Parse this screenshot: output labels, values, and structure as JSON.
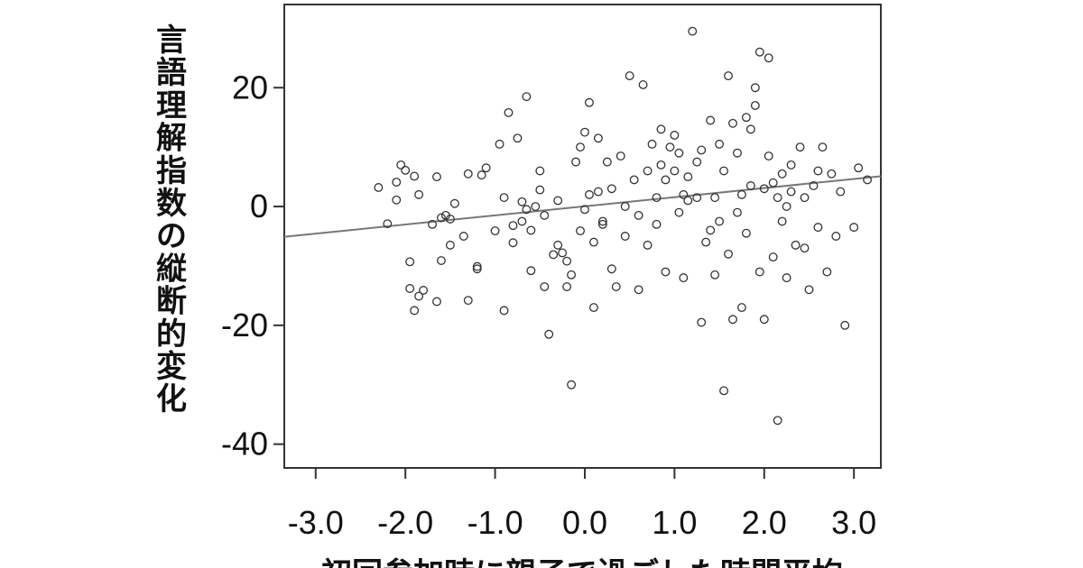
{
  "chart_data": {
    "type": "scatter",
    "title": "",
    "xlabel": "初回参加時に親子で過ごした時間平均",
    "ylabel": "言語理解指数の縦断的変化",
    "xlim": [
      -3.35,
      3.3
    ],
    "ylim": [
      -44,
      34
    ],
    "xticks": [
      -3.0,
      -2.0,
      -1.0,
      0.0,
      1.0,
      2.0,
      3.0
    ],
    "xtick_labels": [
      "-3.0",
      "-2.0",
      "-1.0",
      "0.0",
      "1.0",
      "2.0",
      "3.0"
    ],
    "yticks": [
      20,
      0,
      -20,
      -40
    ],
    "ytick_labels": [
      "20",
      "0",
      "-20",
      "-40"
    ],
    "grid": false,
    "legend": "none",
    "colors": {
      "marker_stroke": "#333333",
      "fit_line": "#777777",
      "axis": "#333333"
    },
    "fit_line": {
      "x": [
        -3.35,
        3.3
      ],
      "y": [
        -5.1,
        5.1
      ]
    },
    "points": [
      [
        -2.3,
        3.2
      ],
      [
        -2.2,
        -2.9
      ],
      [
        -2.1,
        1.1
      ],
      [
        -2.1,
        4.1
      ],
      [
        -2.05,
        7.0
      ],
      [
        -2.0,
        6.1
      ],
      [
        -1.95,
        -9.3
      ],
      [
        -1.95,
        -13.8
      ],
      [
        -1.9,
        -17.5
      ],
      [
        -1.9,
        5.1
      ],
      [
        -1.85,
        -15.1
      ],
      [
        -1.8,
        -14.1
      ],
      [
        -1.85,
        2.0
      ],
      [
        -1.7,
        -3.0
      ],
      [
        -1.65,
        -16.0
      ],
      [
        -1.65,
        5.0
      ],
      [
        -1.6,
        -9.1
      ],
      [
        -1.6,
        -1.9
      ],
      [
        -1.55,
        -1.5
      ],
      [
        -1.5,
        -2.1
      ],
      [
        -1.5,
        -6.5
      ],
      [
        -1.45,
        0.5
      ],
      [
        -1.35,
        -5.0
      ],
      [
        -1.3,
        -15.8
      ],
      [
        -1.3,
        5.5
      ],
      [
        -1.2,
        -10.1
      ],
      [
        -1.2,
        -10.5
      ],
      [
        -1.15,
        5.3
      ],
      [
        -1.1,
        6.5
      ],
      [
        -1.0,
        -4.1
      ],
      [
        -0.95,
        10.5
      ],
      [
        -0.9,
        -17.5
      ],
      [
        -0.9,
        1.5
      ],
      [
        -0.85,
        15.8
      ],
      [
        -0.8,
        -6.1
      ],
      [
        -0.8,
        -3.2
      ],
      [
        -0.75,
        11.5
      ],
      [
        -0.7,
        -2.5
      ],
      [
        -0.7,
        0.8
      ],
      [
        -0.65,
        -0.5
      ],
      [
        -0.65,
        18.5
      ],
      [
        -0.6,
        -4.0
      ],
      [
        -0.6,
        -10.8
      ],
      [
        -0.55,
        0.0
      ],
      [
        -0.5,
        6.0
      ],
      [
        -0.5,
        2.8
      ],
      [
        -0.45,
        -1.5
      ],
      [
        -0.45,
        -13.5
      ],
      [
        -0.4,
        -21.5
      ],
      [
        -0.35,
        -8.1
      ],
      [
        -0.3,
        -6.5
      ],
      [
        -0.3,
        1.0
      ],
      [
        -0.25,
        -7.8
      ],
      [
        -0.2,
        -13.5
      ],
      [
        -0.2,
        -9.2
      ],
      [
        -0.15,
        -11.5
      ],
      [
        -0.15,
        -30.0
      ],
      [
        -0.1,
        7.5
      ],
      [
        -0.05,
        -4.1
      ],
      [
        -0.05,
        10.0
      ],
      [
        0.0,
        -0.5
      ],
      [
        0.0,
        12.5
      ],
      [
        0.05,
        17.5
      ],
      [
        0.05,
        2.0
      ],
      [
        0.1,
        -6.0
      ],
      [
        0.1,
        -17.0
      ],
      [
        0.15,
        11.5
      ],
      [
        0.15,
        2.5
      ],
      [
        0.2,
        -2.5
      ],
      [
        0.2,
        -3.0
      ],
      [
        0.25,
        7.5
      ],
      [
        0.3,
        3.0
      ],
      [
        0.3,
        -10.5
      ],
      [
        0.35,
        -13.5
      ],
      [
        0.4,
        8.5
      ],
      [
        0.45,
        0.0
      ],
      [
        0.45,
        -5.0
      ],
      [
        0.5,
        22.0
      ],
      [
        0.55,
        4.5
      ],
      [
        0.6,
        -14.0
      ],
      [
        0.6,
        -1.5
      ],
      [
        0.65,
        20.5
      ],
      [
        0.7,
        6.0
      ],
      [
        0.7,
        -6.5
      ],
      [
        0.75,
        10.5
      ],
      [
        0.8,
        -3.0
      ],
      [
        0.8,
        1.5
      ],
      [
        0.85,
        7.0
      ],
      [
        0.85,
        13.0
      ],
      [
        0.9,
        -11.0
      ],
      [
        0.9,
        4.5
      ],
      [
        0.95,
        10.0
      ],
      [
        1.0,
        12.0
      ],
      [
        1.0,
        6.0
      ],
      [
        1.05,
        -1.0
      ],
      [
        1.05,
        9.0
      ],
      [
        1.1,
        2.0
      ],
      [
        1.1,
        -12.0
      ],
      [
        1.15,
        1.0
      ],
      [
        1.15,
        5.0
      ],
      [
        1.2,
        29.5
      ],
      [
        1.25,
        1.5
      ],
      [
        1.25,
        7.5
      ],
      [
        1.3,
        -19.5
      ],
      [
        1.3,
        9.5
      ],
      [
        1.35,
        -6.0
      ],
      [
        1.4,
        14.5
      ],
      [
        1.4,
        -4.0
      ],
      [
        1.45,
        1.5
      ],
      [
        1.45,
        -11.5
      ],
      [
        1.5,
        -2.5
      ],
      [
        1.5,
        10.5
      ],
      [
        1.55,
        6.0
      ],
      [
        1.55,
        -31.0
      ],
      [
        1.6,
        22.0
      ],
      [
        1.6,
        -8.0
      ],
      [
        1.65,
        -19.0
      ],
      [
        1.65,
        14.0
      ],
      [
        1.7,
        9.0
      ],
      [
        1.7,
        -1.0
      ],
      [
        1.75,
        2.0
      ],
      [
        1.75,
        -17.0
      ],
      [
        1.8,
        15.0
      ],
      [
        1.8,
        -4.5
      ],
      [
        1.85,
        13.0
      ],
      [
        1.85,
        3.5
      ],
      [
        1.9,
        20.0
      ],
      [
        1.9,
        17.0
      ],
      [
        1.95,
        -11.0
      ],
      [
        1.95,
        26.0
      ],
      [
        2.0,
        -19.0
      ],
      [
        2.0,
        3.0
      ],
      [
        2.05,
        25.0
      ],
      [
        2.05,
        8.5
      ],
      [
        2.1,
        4.0
      ],
      [
        2.1,
        -8.5
      ],
      [
        2.15,
        -36.0
      ],
      [
        2.15,
        1.5
      ],
      [
        2.2,
        5.5
      ],
      [
        2.2,
        -2.5
      ],
      [
        2.25,
        0.0
      ],
      [
        2.25,
        -12.0
      ],
      [
        2.3,
        2.5
      ],
      [
        2.3,
        7.0
      ],
      [
        2.35,
        -6.5
      ],
      [
        2.4,
        10.0
      ],
      [
        2.45,
        1.5
      ],
      [
        2.45,
        -7.0
      ],
      [
        2.5,
        -14.0
      ],
      [
        2.55,
        3.5
      ],
      [
        2.6,
        -3.5
      ],
      [
        2.6,
        6.0
      ],
      [
        2.65,
        10.0
      ],
      [
        2.7,
        -11.0
      ],
      [
        2.75,
        5.5
      ],
      [
        2.8,
        -5.0
      ],
      [
        2.85,
        2.5
      ],
      [
        2.9,
        -20.0
      ],
      [
        3.0,
        -3.5
      ],
      [
        3.05,
        6.5
      ],
      [
        3.15,
        4.5
      ]
    ]
  }
}
